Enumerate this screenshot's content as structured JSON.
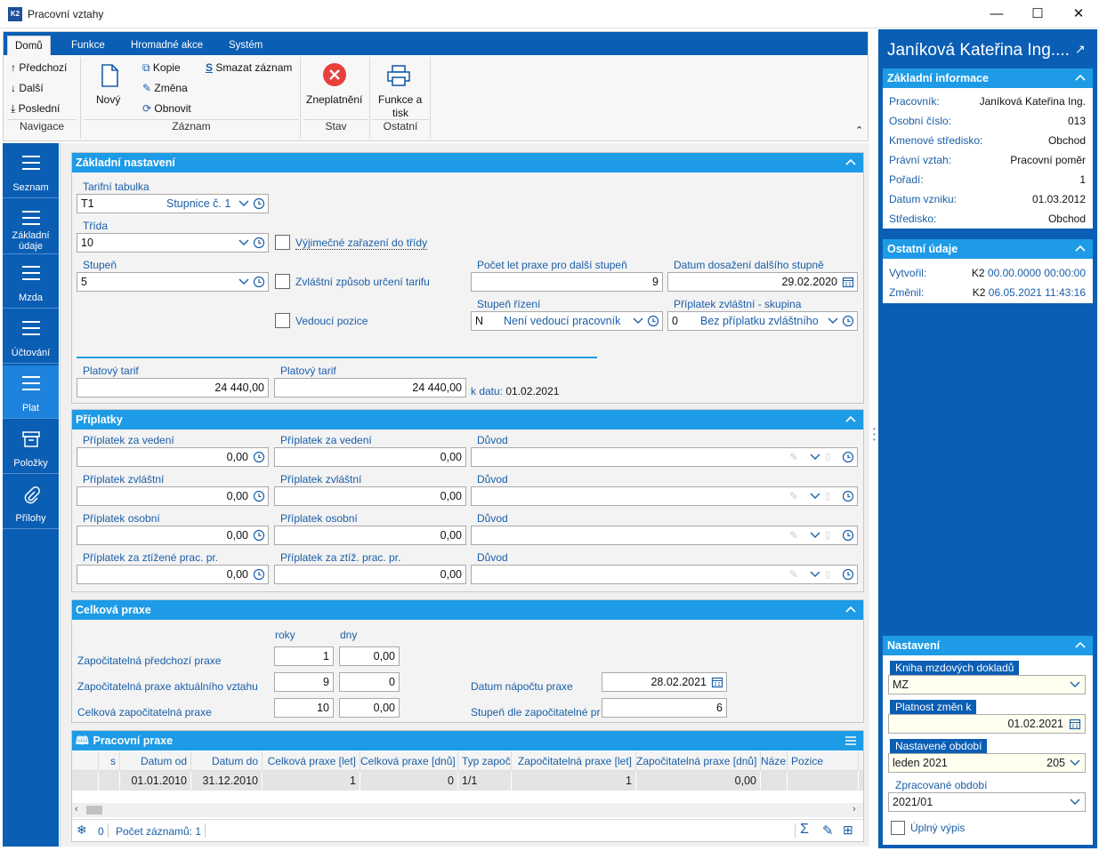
{
  "window": {
    "title": "Pracovní vztahy",
    "logo": "K2"
  },
  "ribbon": {
    "tabs": [
      "Domů",
      "Funkce",
      "Hromadné akce",
      "Systém"
    ],
    "nav": {
      "prev": "Předchozí",
      "next": "Další",
      "last": "Poslední",
      "group": "Navigace"
    },
    "record": {
      "new": "Nový",
      "copy": "Kopie",
      "change": "Změna",
      "refresh": "Obnovit",
      "delete": "Smazat záznam",
      "group": "Záznam"
    },
    "state": {
      "invalidate": "Zneplatnění",
      "group": "Stav"
    },
    "other": {
      "print_l1": "Funkce a",
      "print_l2": "tisk",
      "group": "Ostatní"
    }
  },
  "leftnav": [
    {
      "label": "Seznam"
    },
    {
      "label": "Základní údaje"
    },
    {
      "label": "Mzda"
    },
    {
      "label": "Účtování"
    },
    {
      "label": "Plat"
    },
    {
      "label": "Položky"
    },
    {
      "label": "Přílohy"
    }
  ],
  "basic": {
    "title": "Základní nastavení",
    "tariff_table_label": "Tarifní tabulka",
    "tariff_table_code": "T1",
    "tariff_table_name": "Stupnice č. 1",
    "class_label": "Třída",
    "class_value": "10",
    "grade_label": "Stupeň",
    "grade_value": "5",
    "exceptional_label": "Výjimečné zařazení do třídy",
    "special_label": "Zvláštní způsob určení tarifu",
    "manager_label": "Vedoucí pozice",
    "years_label": "Počet let praxe pro další stupeň",
    "years_value": "9",
    "date_next_label": "Datum dosažení dalšího stupně",
    "date_next_value": "29.02.2020",
    "mgmt_label": "Stupeň řízení",
    "mgmt_code": "N",
    "mgmt_name": "Není vedoucí pracovník",
    "bonus_group_label": "Příplatek zvláštní - skupina",
    "bonus_group_code": "0",
    "bonus_group_name": "Bez příplatku zvláštního",
    "salary_label_1": "Platový tarif",
    "salary_value_1": "24 440,00",
    "salary_label_2": "Platový tarif",
    "salary_value_2": "24 440,00",
    "as_of_label": "k datu:",
    "as_of_value": "01.02.2021"
  },
  "bonuses": {
    "title": "Příplatky",
    "rows": [
      {
        "l1": "Příplatek za vedení",
        "v1": "0,00",
        "l2": "Příplatek za vedení",
        "v2": "0,00",
        "l3": "Důvod"
      },
      {
        "l1": "Příplatek zvláštní",
        "v1": "0,00",
        "l2": "Příplatek zvláštní",
        "v2": "0,00",
        "l3": "Důvod"
      },
      {
        "l1": "Příplatek osobní",
        "v1": "0,00",
        "l2": "Příplatek osobní",
        "v2": "0,00",
        "l3": "Důvod"
      },
      {
        "l1": "Příplatek za ztížené prac. pr.",
        "v1": "0,00",
        "l2": "Příplatek za ztíž. prac. pr.",
        "v2": "0,00",
        "l3": "Důvod"
      }
    ]
  },
  "practice": {
    "title": "Celková praxe",
    "col_years": "roky",
    "col_days": "dny",
    "prev_label": "Započitatelná předchozí praxe",
    "prev_years": "1",
    "prev_days": "0,00",
    "curr_label": "Započitatelná praxe aktuálního vztahu",
    "curr_years": "9",
    "curr_days": "0",
    "total_label": "Celková započitatelná praxe",
    "total_years": "10",
    "total_days": "0,00",
    "calc_date_label": "Datum nápočtu praxe",
    "calc_date_value": "28.02.2021",
    "grade_by_label": "Stupeň dle započitatelné pr",
    "grade_by_value": "6"
  },
  "grid": {
    "title": "Pracovní praxe",
    "headers": [
      "s",
      "Datum od",
      "Datum do",
      "Celková praxe [let]",
      "Celková praxe [dnů]",
      "Typ započ",
      "Započitatelná praxe [let]",
      "Započitatelná praxe [dnů]",
      "Náze",
      "Pozice"
    ],
    "rows": [
      [
        "",
        "01.01.2010",
        "31.12.2010",
        "1",
        "0",
        "1/1",
        "1",
        "0,00",
        "",
        ""
      ]
    ],
    "footer_count_zero": "0",
    "footer_records": "Počet záznamů: 1"
  },
  "right": {
    "name": "Janíková Kateřina Ing....",
    "basic_title": "Základní informace",
    "basic": [
      {
        "k": "Pracovník:",
        "v": "Janíková Kateřina Ing."
      },
      {
        "k": "Osobní číslo:",
        "v": "013"
      },
      {
        "k": "Kmenové středisko:",
        "v": "Obchod"
      },
      {
        "k": "Právní vztah:",
        "v": "Pracovní poměr"
      },
      {
        "k": "Pořadí:",
        "v": "1"
      },
      {
        "k": "Datum vzniku:",
        "v": "01.03.2012"
      },
      {
        "k": "Středisko:",
        "v": "Obchod"
      }
    ],
    "other_title": "Ostatní údaje",
    "created_label": "Vytvořil:",
    "created_user": "K2",
    "created_date": "00.00.0000 00:00:00",
    "changed_label": "Změnil:",
    "changed_user": "K2",
    "changed_date": "06.05.2021 11:43:16",
    "settings_title": "Nastavení",
    "book_label": "Kniha mzdových dokladů",
    "book_value": "MZ",
    "validity_label": "Platnost změn k",
    "validity_value": "01.02.2021",
    "period_label": "Nastavené období",
    "period_value": "leden 2021",
    "period_code": "205",
    "processed_label": "Zpracované období",
    "processed_value": "2021/01",
    "full_label": "Úplný výpis"
  },
  "colors": {
    "primary": "#0a5eb4",
    "header": "#1e9be6",
    "label": "#1a5ea8"
  }
}
